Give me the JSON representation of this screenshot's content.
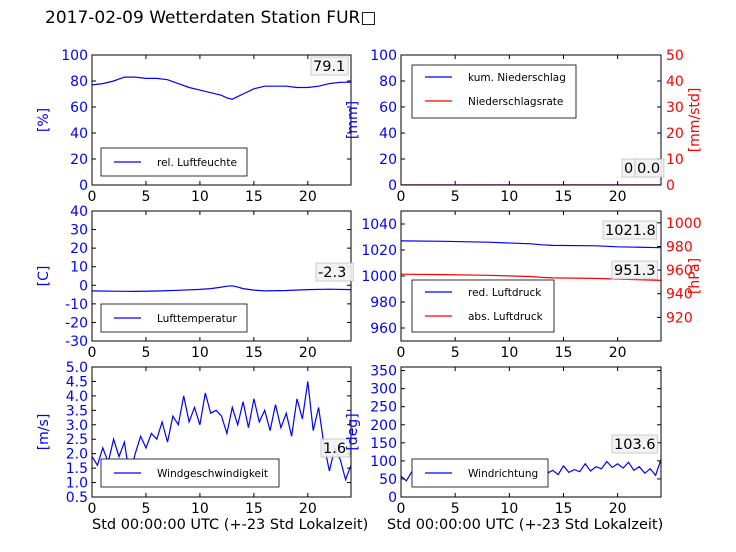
{
  "title": "2017-02-09 Wetterdaten Station FUR□",
  "x_caption_left": "Std 00:00:00 UTC (+-23 Std Lokalzeit)",
  "x_caption_right": "Std 00:00:00 UTC (+-23 Std Lokalzeit)",
  "colors": {
    "blue": "#0000ff",
    "red": "#ff0000",
    "light_blue": "#7f7fff"
  },
  "chart_data": [
    {
      "id": "humidity",
      "type": "line",
      "xlim": [
        0,
        24
      ],
      "xticks": [
        0,
        5,
        10,
        15,
        20
      ],
      "ylim": [
        0,
        100
      ],
      "yticks": [
        0,
        20,
        40,
        60,
        80,
        100
      ],
      "ylabel": "[%]",
      "ylabel_color": "#0000ff",
      "ytick_color": "#0000ff",
      "grid": false,
      "legend_placement": "lower-left",
      "annotation": "79.1",
      "series": [
        {
          "name": "rel. Luftfeuchte",
          "color": "#0000ff",
          "axis": "left",
          "x": [
            0,
            1,
            2,
            3,
            4,
            5,
            6,
            7,
            8,
            9,
            10,
            11,
            12,
            12.5,
            13,
            13.5,
            14,
            15,
            16,
            17,
            18,
            19,
            20,
            21,
            22,
            23,
            24
          ],
          "y": [
            77,
            78,
            80,
            83,
            83,
            82,
            82,
            81,
            78,
            75,
            73,
            71,
            69,
            67,
            66,
            68,
            70,
            74,
            76,
            76,
            76,
            75,
            75,
            76,
            78,
            79,
            79.1
          ]
        }
      ]
    },
    {
      "id": "precip",
      "type": "line",
      "xlim": [
        0,
        24
      ],
      "xticks": [
        0,
        5,
        10,
        15,
        20
      ],
      "ylim": [
        0,
        100
      ],
      "yticks": [
        0,
        20,
        40,
        60,
        80,
        100
      ],
      "ylabel": "[mm]",
      "ylabel_color": "#0000ff",
      "ytick_color": "#0000ff",
      "y2lim": [
        0,
        50
      ],
      "y2ticks": [
        0,
        10,
        20,
        30,
        40,
        50
      ],
      "y2label": "[mm/std]",
      "y2label_color": "#ff0000",
      "y2tick_color": "#ff0000",
      "grid": false,
      "legend_placement": "upper-left",
      "annotation": "0.0",
      "annotation2": "0.0",
      "series": [
        {
          "name": "kum. Niederschlag",
          "color": "#0000ff",
          "axis": "left",
          "x": [
            0,
            24
          ],
          "y": [
            0,
            0
          ]
        },
        {
          "name": "Niederschlagsrate",
          "color": "#ff0000",
          "axis": "right",
          "x": [
            0,
            24
          ],
          "y": [
            0,
            0
          ]
        }
      ]
    },
    {
      "id": "temperature",
      "type": "line",
      "xlim": [
        0,
        24
      ],
      "xticks": [
        0,
        5,
        10,
        15,
        20
      ],
      "ylim": [
        -30,
        40
      ],
      "yticks": [
        -30,
        -20,
        -10,
        0,
        10,
        20,
        30,
        40
      ],
      "ylabel": "[C]",
      "ylabel_color": "#0000ff",
      "ytick_color": "#0000ff",
      "grid": false,
      "legend_placement": "lower-left",
      "annotation": "-2.3",
      "series": [
        {
          "name": "Lufttemperatur",
          "color": "#0000ff",
          "axis": "left",
          "x": [
            0,
            2,
            4,
            6,
            8,
            10,
            11,
            12,
            12.5,
            13,
            13.5,
            14,
            15,
            16,
            18,
            20,
            22,
            24
          ],
          "y": [
            -3.0,
            -3.2,
            -3.3,
            -3.1,
            -2.7,
            -2.2,
            -1.8,
            -1.0,
            -0.5,
            -0.3,
            -1.0,
            -1.8,
            -2.6,
            -3.0,
            -2.8,
            -2.3,
            -2.1,
            -2.3
          ]
        }
      ]
    },
    {
      "id": "pressure",
      "type": "line",
      "xlim": [
        0,
        24
      ],
      "xticks": [
        0,
        5,
        10,
        15,
        20
      ],
      "ylim": [
        950,
        1050
      ],
      "yticks": [
        960,
        980,
        1000,
        1020,
        1040
      ],
      "ylabel": "",
      "ytick_color": "#0000ff",
      "y2lim": [
        900,
        1010
      ],
      "y2ticks": [
        920,
        940,
        960,
        980,
        1000
      ],
      "y2label": "[hPa]",
      "y2label_color": "#ff0000",
      "y2tick_color": "#ff0000",
      "grid": false,
      "legend_placement": "lower-left",
      "annotation": "1021.8",
      "annotation2": "951.3",
      "series": [
        {
          "name": "red. Luftdruck",
          "color": "#0000ff",
          "axis": "left",
          "x": [
            0,
            4,
            8,
            12,
            13,
            14,
            18,
            20,
            24
          ],
          "y": [
            1027,
            1026.7,
            1026,
            1024.8,
            1024,
            1023.5,
            1023.2,
            1022.5,
            1021.8
          ]
        },
        {
          "name": "abs. Luftdruck",
          "color": "#ff0000",
          "axis": "right",
          "x": [
            0,
            4,
            8,
            12,
            13,
            14,
            18,
            20,
            24
          ],
          "y": [
            956.5,
            956.2,
            955.6,
            954.6,
            953.8,
            953.4,
            953.0,
            952.4,
            951.3
          ]
        }
      ]
    },
    {
      "id": "windspeed",
      "type": "line",
      "xlim": [
        0,
        24
      ],
      "xticks": [
        0,
        5,
        10,
        15,
        20
      ],
      "ylim": [
        0.5,
        5.0
      ],
      "yticks": [
        0.5,
        1.0,
        1.5,
        2.0,
        2.5,
        3.0,
        3.5,
        4.0,
        4.5,
        5.0
      ],
      "ylabel": "[m/s]",
      "ylabel_color": "#0000ff",
      "ytick_color": "#0000ff",
      "grid": false,
      "legend_placement": "lower-left",
      "annotation": "1.6",
      "series": [
        {
          "name": "Windgeschwindigkeit",
          "color": "#0000ff",
          "axis": "left",
          "x": [
            0,
            0.5,
            1,
            1.5,
            2,
            2.5,
            3,
            3.5,
            4,
            4.5,
            5,
            5.5,
            6,
            6.5,
            7,
            7.5,
            8,
            8.5,
            9,
            9.5,
            10,
            10.5,
            11,
            11.5,
            12,
            12.5,
            13,
            13.5,
            14,
            14.5,
            15,
            15.5,
            16,
            16.5,
            17,
            17.5,
            18,
            18.5,
            19,
            19.5,
            20,
            20.5,
            21,
            21.5,
            22,
            22.5,
            23,
            23.5,
            24
          ],
          "y": [
            1.9,
            1.6,
            2.2,
            1.7,
            2.5,
            1.9,
            2.4,
            1.2,
            2.0,
            2.6,
            2.2,
            2.7,
            2.5,
            3.1,
            2.4,
            3.3,
            3.0,
            4.0,
            3.1,
            3.6,
            3.0,
            4.1,
            3.4,
            3.5,
            3.3,
            2.7,
            3.6,
            3.0,
            3.8,
            2.9,
            3.9,
            3.1,
            3.5,
            2.8,
            3.7,
            2.9,
            3.4,
            2.6,
            3.9,
            3.2,
            4.5,
            2.8,
            3.6,
            2.3,
            1.4,
            2.2,
            1.8,
            1.1,
            1.6
          ]
        }
      ]
    },
    {
      "id": "winddir",
      "type": "line",
      "xlim": [
        0,
        24
      ],
      "xticks": [
        0,
        5,
        10,
        15,
        20
      ],
      "ylim": [
        0,
        360
      ],
      "yticks": [
        0,
        50,
        100,
        150,
        200,
        250,
        300,
        350
      ],
      "ylabel": "[deg]",
      "ylabel_color": "#0000ff",
      "ytick_color": "#0000ff",
      "grid": false,
      "legend_placement": "lower-left",
      "annotation": "103.6",
      "series": [
        {
          "name": "Windrichtung",
          "color": "#0000ff",
          "axis": "left",
          "x": [
            0,
            0.5,
            1,
            1.5,
            2,
            2.5,
            3,
            3.5,
            4,
            4.5,
            5,
            5.5,
            6,
            6.5,
            7,
            7.5,
            8,
            8.5,
            9,
            9.5,
            10,
            10.5,
            11,
            11.5,
            12,
            12.5,
            13,
            13.5,
            14,
            14.5,
            15,
            15.5,
            16,
            16.5,
            17,
            17.5,
            18,
            18.5,
            19,
            19.5,
            20,
            20.5,
            21,
            21.5,
            22,
            22.5,
            23,
            23.5,
            24
          ],
          "y": [
            58,
            45,
            70,
            55,
            65,
            48,
            72,
            60,
            66,
            52,
            74,
            58,
            68,
            62,
            78,
            60,
            72,
            55,
            80,
            62,
            70,
            58,
            84,
            64,
            76,
            60,
            82,
            66,
            74,
            62,
            86,
            68,
            76,
            70,
            92,
            72,
            84,
            78,
            98,
            82,
            92,
            80,
            96,
            74,
            84,
            66,
            78,
            60,
            103.6
          ]
        }
      ]
    }
  ]
}
